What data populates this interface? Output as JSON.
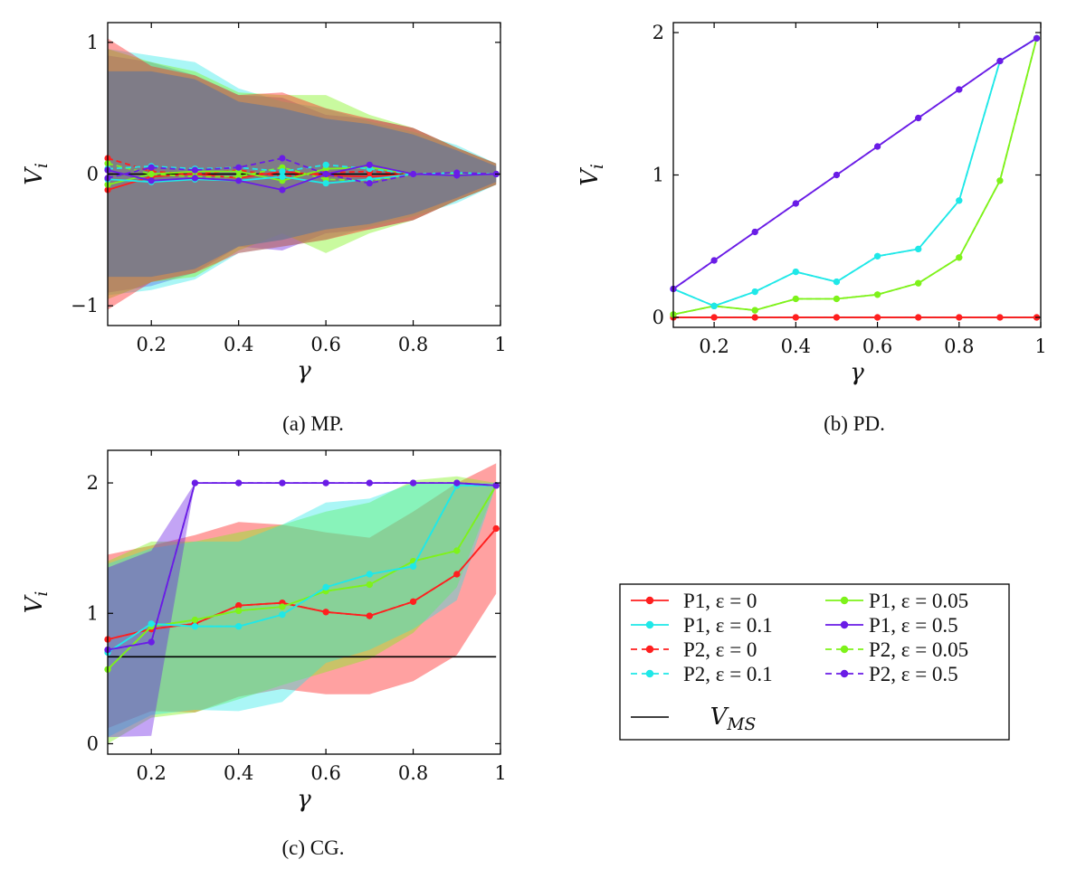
{
  "chart_data": [
    {
      "id": "mp",
      "type": "line",
      "caption": "(a) MP.",
      "xlabel": "γ",
      "ylabel": "V_i",
      "xlim": [
        0.1,
        1.0
      ],
      "ylim": [
        -1.15,
        1.15
      ],
      "xticks": [
        0.2,
        0.4,
        0.6,
        0.8,
        1
      ],
      "xtick_labels": [
        "0.2",
        "0.4",
        "0.6",
        "0.8",
        "1"
      ],
      "yticks": [
        -1,
        0,
        1
      ],
      "ytick_labels": [
        "−1",
        "0",
        "1"
      ],
      "x": [
        0.1,
        0.2,
        0.3,
        0.4,
        0.5,
        0.6,
        0.7,
        0.8,
        0.9,
        0.99
      ],
      "vms": 0,
      "bands": [
        {
          "key": "e05",
          "upper": [
            0.9,
            0.85,
            0.75,
            0.6,
            0.58,
            0.45,
            0.42,
            0.35,
            0.2,
            0.08
          ],
          "lower": [
            -0.9,
            -0.85,
            -0.75,
            -0.55,
            -0.58,
            -0.45,
            -0.42,
            -0.35,
            -0.2,
            -0.08
          ]
        },
        {
          "key": "e01",
          "upper": [
            0.95,
            0.9,
            0.85,
            0.65,
            0.55,
            0.5,
            0.4,
            0.32,
            0.22,
            0.08
          ],
          "lower": [
            -0.92,
            -0.88,
            -0.8,
            -0.6,
            -0.55,
            -0.5,
            -0.4,
            -0.32,
            -0.22,
            -0.08
          ]
        },
        {
          "key": "e005",
          "upper": [
            0.95,
            0.85,
            0.78,
            0.62,
            0.6,
            0.6,
            0.45,
            0.35,
            0.2,
            0.08
          ],
          "lower": [
            -0.95,
            -0.82,
            -0.78,
            -0.58,
            -0.45,
            -0.6,
            -0.45,
            -0.35,
            -0.2,
            -0.08
          ]
        },
        {
          "key": "e0",
          "upper": [
            1.03,
            0.82,
            0.75,
            0.6,
            0.62,
            0.5,
            0.42,
            0.35,
            0.2,
            0.08
          ],
          "lower": [
            -1.03,
            -0.82,
            -0.75,
            -0.6,
            -0.55,
            -0.5,
            -0.42,
            -0.35,
            -0.2,
            -0.08
          ]
        }
      ],
      "series": [
        {
          "key": "e0",
          "player": "P1",
          "values": [
            -0.12,
            -0.02,
            0.0,
            -0.03,
            0.02,
            -0.01,
            -0.02,
            0.0,
            -0.01,
            0.0
          ]
        },
        {
          "key": "e0",
          "player": "P2",
          "values": [
            0.12,
            0.02,
            0.0,
            0.03,
            -0.02,
            0.01,
            0.02,
            0.0,
            0.01,
            0.0
          ]
        },
        {
          "key": "e005",
          "player": "P1",
          "values": [
            -0.08,
            0.0,
            0.02,
            0.02,
            -0.05,
            0.04,
            0.05,
            0.0,
            0.0,
            0.0
          ]
        },
        {
          "key": "e005",
          "player": "P2",
          "values": [
            0.08,
            0.0,
            -0.02,
            -0.02,
            0.05,
            -0.04,
            -0.05,
            0.0,
            0.0,
            0.0
          ]
        },
        {
          "key": "e01",
          "player": "P1",
          "values": [
            -0.04,
            -0.06,
            -0.04,
            -0.05,
            -0.02,
            -0.07,
            -0.04,
            0.0,
            -0.01,
            0.0
          ]
        },
        {
          "key": "e01",
          "player": "P2",
          "values": [
            0.04,
            0.06,
            0.04,
            0.05,
            0.02,
            0.07,
            0.04,
            0.0,
            0.01,
            0.0
          ]
        },
        {
          "key": "e05",
          "player": "P1",
          "values": [
            0.03,
            -0.05,
            -0.03,
            -0.05,
            -0.12,
            0.0,
            0.07,
            0.0,
            -0.01,
            0.0
          ]
        },
        {
          "key": "e05",
          "player": "P2",
          "values": [
            -0.03,
            0.05,
            0.03,
            0.05,
            0.12,
            0.0,
            -0.07,
            0.0,
            0.01,
            0.0
          ]
        }
      ]
    },
    {
      "id": "pd",
      "type": "line",
      "caption": "(b) PD.",
      "xlabel": "γ",
      "ylabel": "V_i",
      "xlim": [
        0.1,
        1.0
      ],
      "ylim": [
        -0.07,
        2.07
      ],
      "xticks": [
        0.2,
        0.4,
        0.6,
        0.8,
        1
      ],
      "xtick_labels": [
        "0.2",
        "0.4",
        "0.6",
        "0.8",
        "1"
      ],
      "yticks": [
        0,
        1,
        2
      ],
      "ytick_labels": [
        "0",
        "1",
        "2"
      ],
      "x": [
        0.1,
        0.2,
        0.3,
        0.4,
        0.5,
        0.6,
        0.7,
        0.8,
        0.9,
        0.99
      ],
      "vms": 0,
      "bands": [],
      "series": [
        {
          "key": "e0",
          "player": "P1",
          "values": [
            0,
            0,
            0,
            0,
            0,
            0,
            0,
            0,
            0,
            0
          ]
        },
        {
          "key": "e0",
          "player": "P2",
          "values": [
            0,
            0,
            0,
            0,
            0,
            0,
            0,
            0,
            0,
            0
          ]
        },
        {
          "key": "e005",
          "player": "P1",
          "values": [
            0.02,
            0.08,
            0.05,
            0.13,
            0.13,
            0.16,
            0.24,
            0.42,
            0.96,
            1.96
          ]
        },
        {
          "key": "e005",
          "player": "P2",
          "values": [
            0.02,
            0.08,
            0.05,
            0.13,
            0.13,
            0.16,
            0.24,
            0.42,
            0.96,
            1.96
          ]
        },
        {
          "key": "e01",
          "player": "P1",
          "values": [
            0.2,
            0.08,
            0.18,
            0.32,
            0.25,
            0.43,
            0.48,
            0.82,
            1.8,
            1.96
          ]
        },
        {
          "key": "e01",
          "player": "P2",
          "values": [
            0.2,
            0.08,
            0.18,
            0.32,
            0.25,
            0.43,
            0.48,
            0.82,
            1.8,
            1.96
          ]
        },
        {
          "key": "e05",
          "player": "P1",
          "values": [
            0.2,
            0.4,
            0.6,
            0.8,
            1.0,
            1.2,
            1.4,
            1.6,
            1.8,
            1.96
          ]
        },
        {
          "key": "e05",
          "player": "P2",
          "values": [
            0.2,
            0.4,
            0.6,
            0.8,
            1.0,
            1.2,
            1.4,
            1.6,
            1.8,
            1.96
          ]
        }
      ]
    },
    {
      "id": "cg",
      "type": "line",
      "caption": "(c) CG.",
      "xlabel": "γ",
      "ylabel": "V_i",
      "xlim": [
        0.1,
        1.0
      ],
      "ylim": [
        -0.08,
        2.25
      ],
      "xticks": [
        0.2,
        0.4,
        0.6,
        0.8,
        1
      ],
      "xtick_labels": [
        "0.2",
        "0.4",
        "0.6",
        "0.8",
        "1"
      ],
      "yticks": [
        0,
        1,
        2
      ],
      "ytick_labels": [
        "0",
        "1",
        "2"
      ],
      "x": [
        0.1,
        0.2,
        0.3,
        0.4,
        0.5,
        0.6,
        0.7,
        0.8,
        0.9,
        0.99
      ],
      "vms": 0.667,
      "bands": [
        {
          "key": "e0",
          "upper": [
            1.45,
            1.52,
            1.6,
            1.7,
            1.68,
            1.62,
            1.58,
            1.78,
            2.0,
            2.15
          ],
          "lower": [
            0.12,
            0.25,
            0.24,
            0.36,
            0.42,
            0.38,
            0.38,
            0.48,
            0.68,
            1.15
          ]
        },
        {
          "key": "e005",
          "upper": [
            1.4,
            1.55,
            1.55,
            1.62,
            1.68,
            1.78,
            1.85,
            2.02,
            2.05,
            2.0
          ],
          "lower": [
            0.0,
            0.2,
            0.24,
            0.34,
            0.45,
            0.55,
            0.65,
            0.85,
            1.2,
            1.98
          ]
        },
        {
          "key": "e01",
          "upper": [
            1.38,
            1.5,
            1.55,
            1.55,
            1.68,
            1.85,
            1.88,
            2.0,
            2.0,
            2.0
          ],
          "lower": [
            0.05,
            0.22,
            0.26,
            0.25,
            0.32,
            0.62,
            0.72,
            0.88,
            1.1,
            1.98
          ]
        },
        {
          "key": "e05",
          "upper": [
            1.35,
            1.48,
            2.0,
            2.0,
            2.0,
            2.0,
            2.0,
            2.0,
            2.0,
            1.98
          ],
          "lower": [
            0.05,
            0.06,
            2.0,
            2.0,
            2.0,
            2.0,
            2.0,
            2.0,
            2.0,
            1.98
          ]
        }
      ],
      "series": [
        {
          "key": "e0",
          "player": "P1",
          "values": [
            0.8,
            0.88,
            0.92,
            1.06,
            1.08,
            1.01,
            0.98,
            1.09,
            1.3,
            1.65
          ]
        },
        {
          "key": "e0",
          "player": "P2",
          "values": [
            0.8,
            0.88,
            0.92,
            1.06,
            1.08,
            1.01,
            0.98,
            1.09,
            1.3,
            1.65
          ]
        },
        {
          "key": "e005",
          "player": "P1",
          "values": [
            0.57,
            0.9,
            0.95,
            1.02,
            1.05,
            1.17,
            1.22,
            1.4,
            1.48,
            1.98
          ]
        },
        {
          "key": "e005",
          "player": "P2",
          "values": [
            0.57,
            0.9,
            0.95,
            1.02,
            1.05,
            1.17,
            1.22,
            1.4,
            1.48,
            1.98
          ]
        },
        {
          "key": "e01",
          "player": "P1",
          "values": [
            0.7,
            0.92,
            0.9,
            0.9,
            0.99,
            1.2,
            1.3,
            1.36,
            1.98,
            1.98
          ]
        },
        {
          "key": "e01",
          "player": "P2",
          "values": [
            0.7,
            0.92,
            0.9,
            0.9,
            0.99,
            1.2,
            1.3,
            1.36,
            1.98,
            1.98
          ]
        },
        {
          "key": "e05",
          "player": "P1",
          "values": [
            0.72,
            0.78,
            2.0,
            2.0,
            2.0,
            2.0,
            2.0,
            2.0,
            2.0,
            1.98
          ]
        },
        {
          "key": "e05",
          "player": "P2",
          "values": [
            0.72,
            0.78,
            2.0,
            2.0,
            2.0,
            2.0,
            2.0,
            2.0,
            2.0,
            1.98
          ]
        }
      ]
    }
  ],
  "colors": {
    "e0": "#ff1f1f",
    "e005": "#7ef21a",
    "e01": "#1fe8e8",
    "e05": "#6a1ce6",
    "vms": "#000000"
  },
  "legend": {
    "entries": [
      {
        "text": "P1, ε = 0",
        "key": "e0",
        "style": "solid"
      },
      {
        "text": "P1, ε = 0.05",
        "key": "e005",
        "style": "solid"
      },
      {
        "text": "P1, ε = 0.1",
        "key": "e01",
        "style": "solid"
      },
      {
        "text": "P1, ε = 0.5",
        "key": "e05",
        "style": "solid"
      },
      {
        "text": "P2, ε = 0",
        "key": "e0",
        "style": "dashed"
      },
      {
        "text": "P2, ε = 0.05",
        "key": "e005",
        "style": "dashed"
      },
      {
        "text": "P2, ε = 0.1",
        "key": "e01",
        "style": "dashed"
      },
      {
        "text": "P2, ε = 0.5",
        "key": "e05",
        "style": "dashed"
      },
      {
        "text": "V_MS",
        "key": "vms",
        "style": "plain"
      }
    ]
  }
}
